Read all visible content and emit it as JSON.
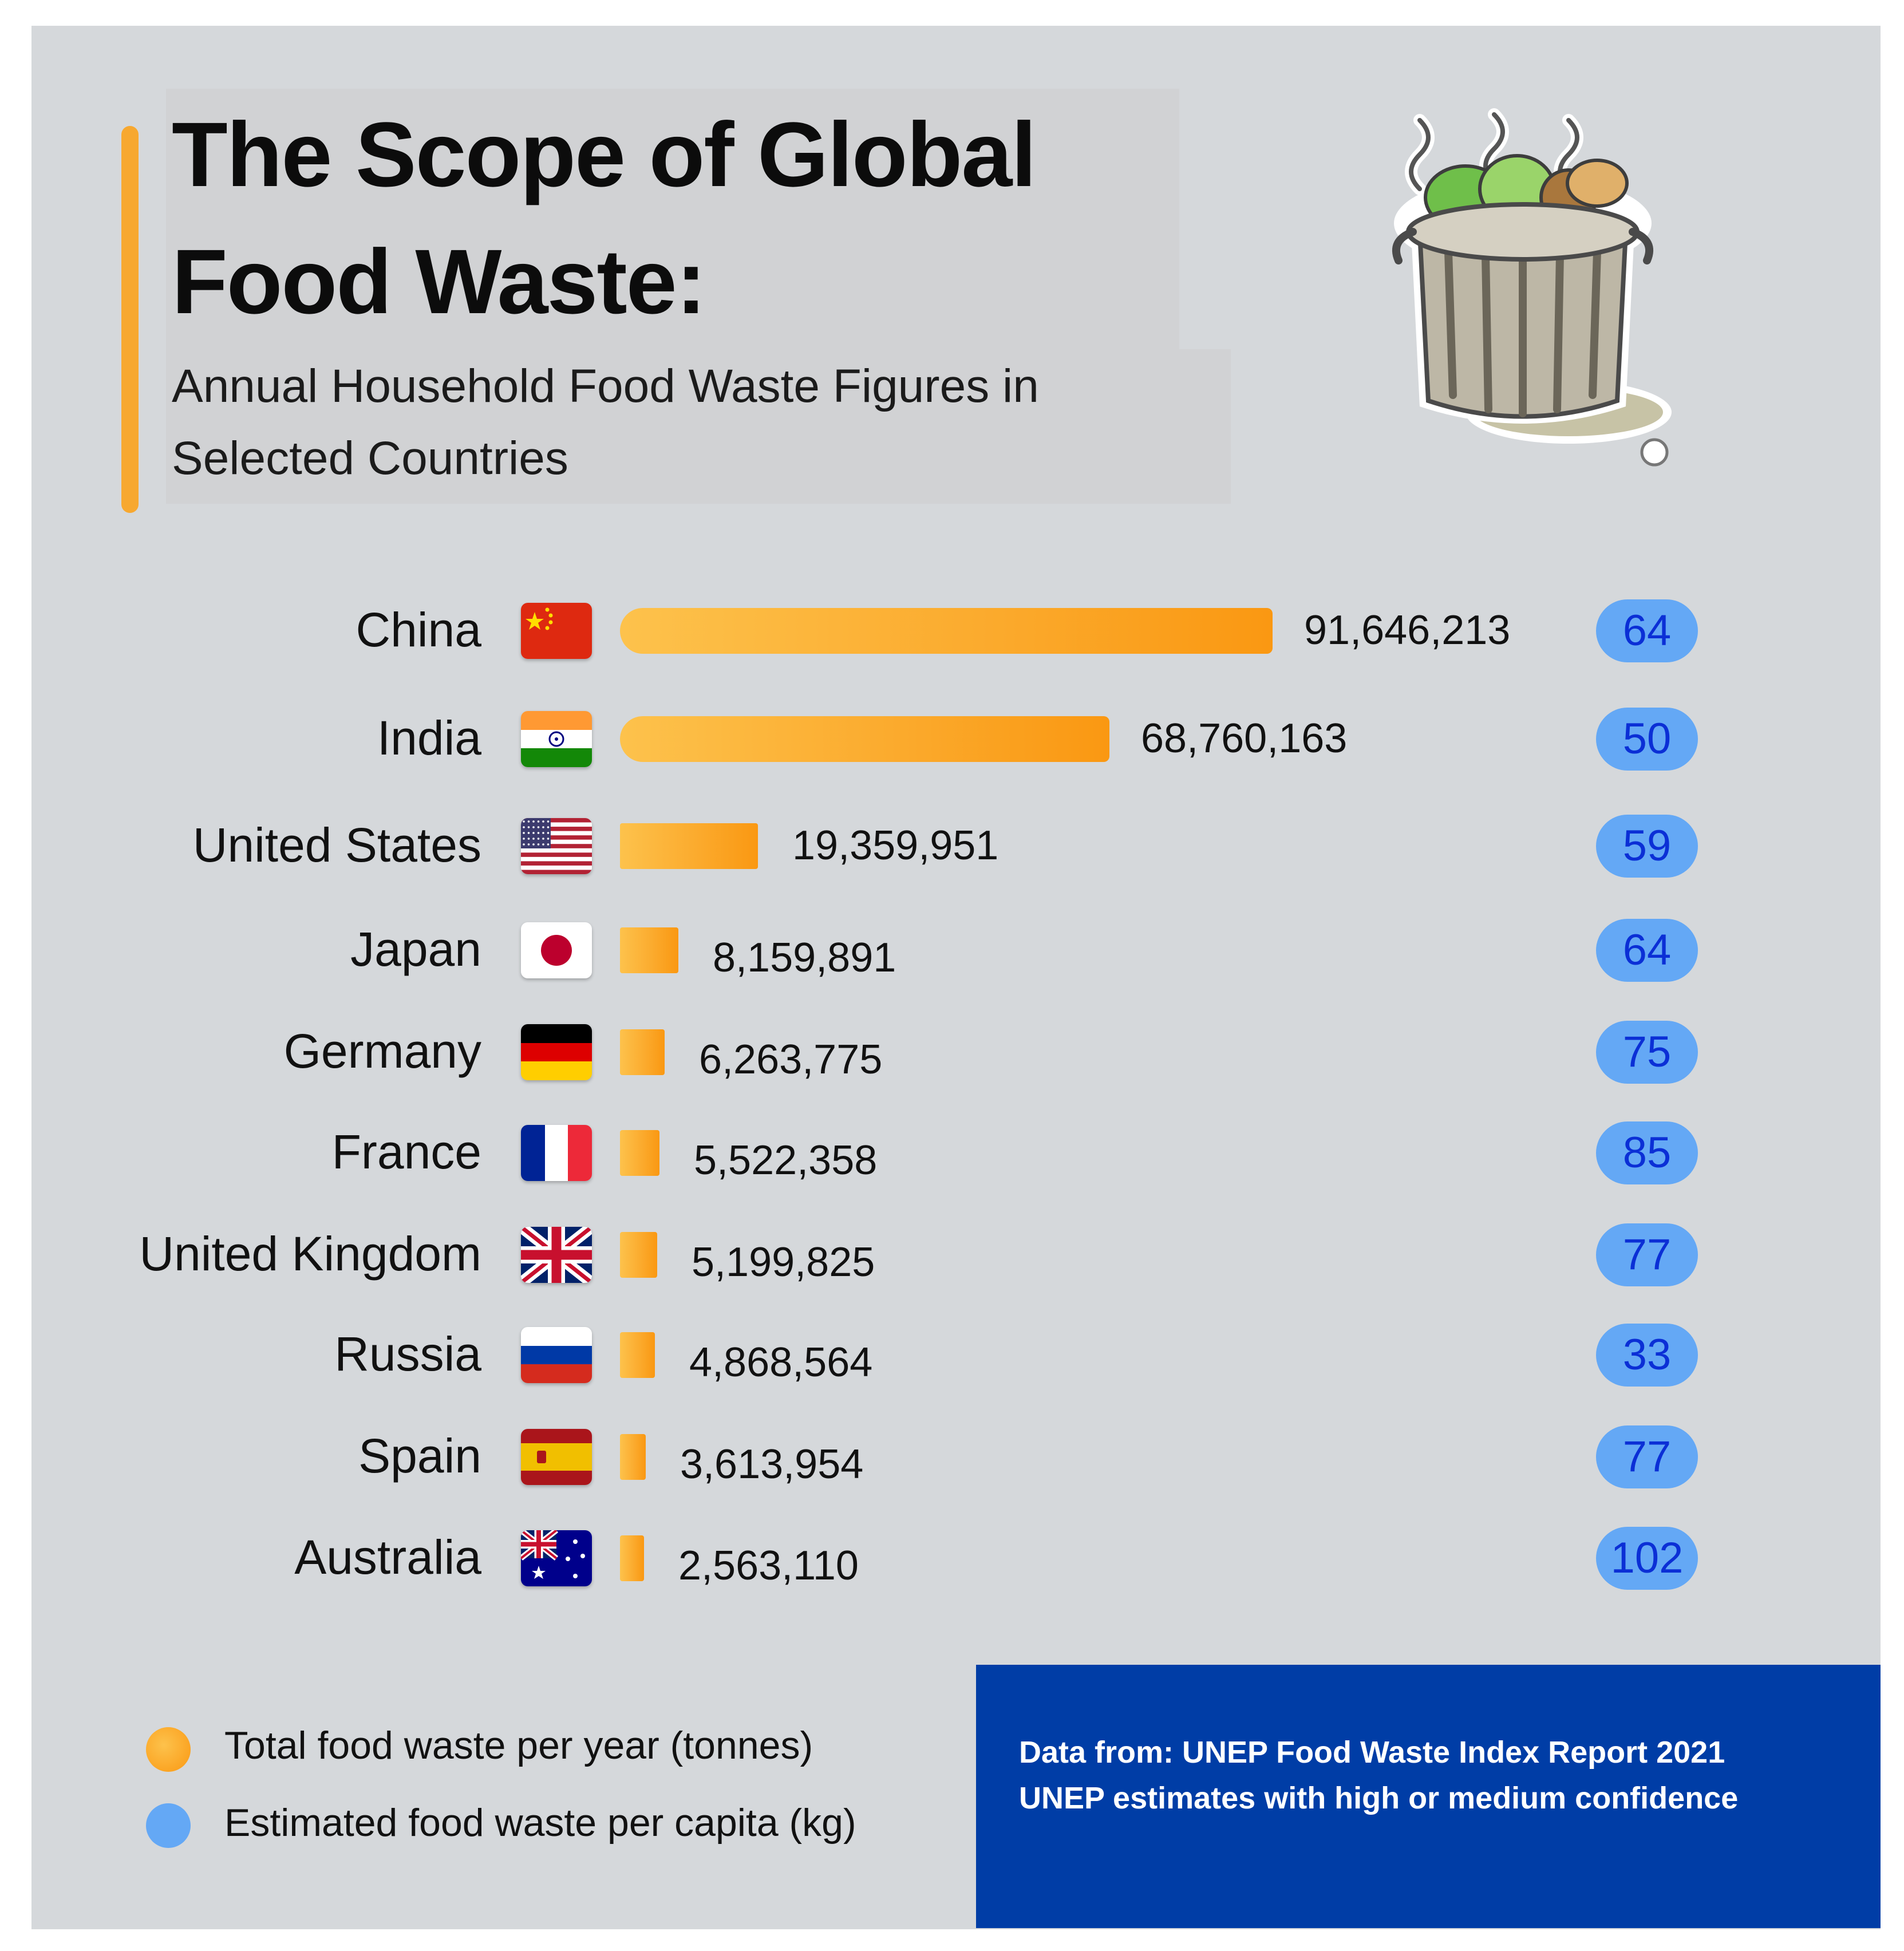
{
  "title": {
    "line1": "The Scope of Global",
    "line2": "Food Waste:"
  },
  "subtitle": {
    "line1": "Annual Household Food Waste Figures in",
    "line2": "Selected Countries"
  },
  "colors": {
    "bar_start": "#fdc24c",
    "bar_end": "#fa9812",
    "pill": "#64a8f5",
    "pill_text": "#0b2fd6",
    "source_bg": "#003da6",
    "panel_bg": "#d5d8db"
  },
  "chart_data": {
    "type": "bar",
    "orientation": "horizontal",
    "title": "The Scope of Global Food Waste: Annual Household Food Waste Figures in Selected Countries",
    "categories": [
      "China",
      "India",
      "United States",
      "Japan",
      "Germany",
      "France",
      "United Kingdom",
      "Russia",
      "Spain",
      "Australia"
    ],
    "series": [
      {
        "name": "Total food waste per year (tonnes)",
        "values": [
          91646213,
          68760163,
          19359951,
          8159891,
          6263775,
          5522358,
          5199825,
          4868564,
          3613954,
          2563110
        ],
        "labels": [
          "91,646,213",
          "68,760,163",
          "19,359,951",
          "8,159,891",
          "6,263,775",
          "5,522,358",
          "5,199,825",
          "4,868,564",
          "3,613,954",
          "2,563,110"
        ]
      },
      {
        "name": "Estimated food waste per capita (kg)",
        "values": [
          64,
          50,
          59,
          64,
          75,
          85,
          77,
          33,
          77,
          102
        ],
        "labels": [
          "64",
          "50",
          "59",
          "64",
          "75",
          "85",
          "77",
          "33",
          "77",
          "102"
        ]
      }
    ],
    "flags": [
      "china-flag-icon",
      "india-flag-icon",
      "usa-flag-icon",
      "japan-flag-icon",
      "germany-flag-icon",
      "france-flag-icon",
      "uk-flag-icon",
      "russia-flag-icon",
      "spain-flag-icon",
      "australia-flag-icon"
    ]
  },
  "legend": {
    "total": "Total food waste per year (tonnes)",
    "per_capita": "Estimated food waste per capita (kg)"
  },
  "source": {
    "line1": "Data from: UNEP Food Waste Index Report 2021",
    "line2": "UNEP estimates with high or medium confidence"
  }
}
